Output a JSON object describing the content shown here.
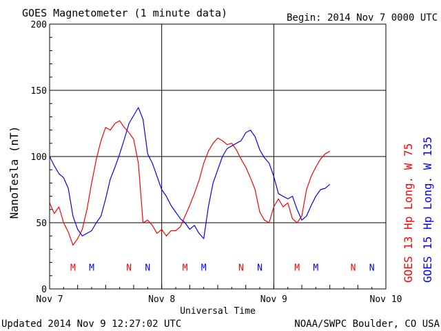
{
  "header": {
    "title": "GOES Magnetometer (1 minute data)",
    "begin": "Begin:  2014 Nov 7 0000 UTC"
  },
  "footer": {
    "updated": "Updated 2014 Nov  9 12:27:02 UTC",
    "credit": "NOAA/SWPC Boulder, CO USA"
  },
  "colors": {
    "goes13": "#ff0000",
    "goes15": "#0000ff",
    "grid": "#000000"
  },
  "chart_data": {
    "type": "line",
    "title": "GOES Magnetometer (1 minute data)",
    "xlabel": "Universal Time",
    "ylabel": "NanoTesla (nT)",
    "xlim": [
      0,
      72
    ],
    "x_unit": "hours since 2014 Nov 7 0000 UTC",
    "ylim": [
      0,
      200
    ],
    "yticks": [
      0,
      50,
      100,
      150,
      200
    ],
    "xticks": [
      {
        "x": 0,
        "label": "Nov 7"
      },
      {
        "x": 24,
        "label": "Nov 8"
      },
      {
        "x": 48,
        "label": "Nov 9"
      },
      {
        "x": 72,
        "label": "Nov 10"
      }
    ],
    "grid": true,
    "series": [
      {
        "name": "GOES 13 Hp  Long. W 75",
        "color": "#ff0000",
        "x": [
          0,
          1,
          2,
          3,
          4,
          5,
          6,
          7,
          8,
          9,
          10,
          11,
          12,
          13,
          14,
          15,
          16,
          17,
          18,
          19,
          20,
          21,
          22,
          23,
          24,
          25,
          26,
          27,
          28,
          29,
          30,
          31,
          32,
          33,
          34,
          35,
          36,
          37,
          38,
          39,
          40,
          41,
          42,
          43,
          44,
          45,
          46,
          47,
          48,
          49,
          50,
          51,
          52,
          53,
          54,
          55,
          56,
          57,
          58,
          59,
          60
        ],
        "values": [
          65,
          57,
          62,
          50,
          43,
          33,
          38,
          45,
          60,
          80,
          98,
          112,
          122,
          120,
          125,
          127,
          122,
          118,
          113,
          95,
          50,
          52,
          48,
          42,
          45,
          40,
          44,
          44,
          47,
          55,
          63,
          72,
          82,
          95,
          104,
          110,
          114,
          112,
          109,
          110,
          105,
          98,
          92,
          84,
          75,
          58,
          52,
          50,
          62,
          68,
          62,
          65,
          53,
          50,
          55,
          75,
          85,
          92,
          98,
          102,
          104
        ]
      },
      {
        "name": "GOES 15 Hp  Long. W 135",
        "color": "#0000ff",
        "x": [
          0,
          1,
          2,
          3,
          4,
          5,
          6,
          7,
          8,
          9,
          10,
          11,
          12,
          13,
          14,
          15,
          16,
          17,
          18,
          19,
          20,
          21,
          22,
          23,
          24,
          25,
          26,
          27,
          28,
          29,
          30,
          31,
          32,
          33,
          34,
          35,
          36,
          37,
          38,
          39,
          40,
          41,
          42,
          43,
          44,
          45,
          46,
          47,
          48,
          49,
          50,
          51,
          52,
          53,
          54,
          55,
          56,
          57,
          58,
          59,
          60
        ],
        "values": [
          100,
          93,
          87,
          84,
          76,
          55,
          45,
          40,
          42,
          44,
          50,
          55,
          68,
          83,
          92,
          102,
          113,
          125,
          131,
          137,
          128,
          102,
          95,
          85,
          75,
          70,
          63,
          58,
          53,
          50,
          45,
          48,
          42,
          38,
          62,
          80,
          90,
          100,
          106,
          108,
          110,
          112,
          118,
          120,
          115,
          105,
          99,
          95,
          85,
          72,
          70,
          68,
          70,
          60,
          52,
          55,
          63,
          70,
          75,
          76,
          79
        ]
      }
    ],
    "annotations": [
      {
        "text": "M",
        "x": 5,
        "color": "#ff0000",
        "y": 17
      },
      {
        "text": "M",
        "x": 9,
        "color": "#0000ff",
        "y": 17
      },
      {
        "text": "N",
        "x": 17,
        "color": "#ff0000",
        "y": 17
      },
      {
        "text": "N",
        "x": 21,
        "color": "#0000ff",
        "y": 17
      },
      {
        "text": "M",
        "x": 29,
        "color": "#ff0000",
        "y": 17
      },
      {
        "text": "M",
        "x": 33,
        "color": "#0000ff",
        "y": 17
      },
      {
        "text": "N",
        "x": 41,
        "color": "#ff0000",
        "y": 17
      },
      {
        "text": "N",
        "x": 45,
        "color": "#0000ff",
        "y": 17
      },
      {
        "text": "M",
        "x": 53,
        "color": "#ff0000",
        "y": 17
      },
      {
        "text": "M",
        "x": 57,
        "color": "#0000ff",
        "y": 17
      },
      {
        "text": "N",
        "x": 65,
        "color": "#ff0000",
        "y": 17
      },
      {
        "text": "N",
        "x": 69,
        "color": "#0000ff",
        "y": 17
      }
    ],
    "legend": "right-vertical"
  }
}
